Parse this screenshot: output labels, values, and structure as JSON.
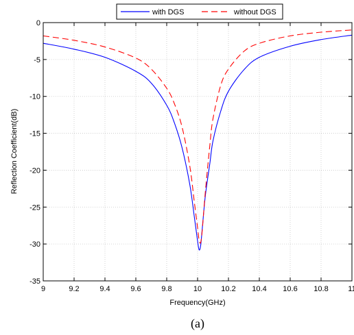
{
  "chart_data": {
    "type": "line",
    "title": "",
    "xlabel": "Frequency(GHz)",
    "ylabel": "Reflection Coefficient(dB)",
    "xlim": [
      9,
      11
    ],
    "ylim": [
      -35,
      0
    ],
    "xticks": [
      9,
      9.2,
      9.4,
      9.6,
      9.8,
      10,
      10.2,
      10.4,
      10.6,
      10.8,
      11
    ],
    "xtick_labels": [
      "9",
      "9.2",
      "9.4",
      "9.6",
      "9.8",
      "10",
      "10.2",
      "10.4",
      "10.6",
      "10.8",
      "11"
    ],
    "yticks": [
      0,
      -5,
      -10,
      -15,
      -20,
      -25,
      -30,
      -35
    ],
    "ytick_labels": [
      "0",
      "-5",
      "-10",
      "-15",
      "-20",
      "-25",
      "-30",
      "-35"
    ],
    "grid": true,
    "legend_position": "top",
    "series": [
      {
        "name": "with DGS",
        "color": "#0000ff",
        "dash": "solid",
        "x": [
          9.0,
          9.2,
          9.4,
          9.6,
          9.7,
          9.8,
          9.85,
          9.9,
          9.95,
          9.98,
          10.0,
          10.01,
          10.02,
          10.03,
          10.05,
          10.08,
          10.1,
          10.15,
          10.2,
          10.3,
          10.4,
          10.6,
          10.8,
          11.0
        ],
        "y": [
          -2.8,
          -3.6,
          -4.7,
          -6.6,
          -8.2,
          -11.2,
          -13.6,
          -17.0,
          -22.0,
          -26.5,
          -29.6,
          -30.8,
          -30.2,
          -28.0,
          -23.5,
          -19.0,
          -16.0,
          -12.0,
          -9.3,
          -6.4,
          -4.7,
          -3.2,
          -2.3,
          -1.7
        ]
      },
      {
        "name": "without DGS",
        "color": "#ff0000",
        "dash": "dashed",
        "x": [
          9.0,
          9.2,
          9.4,
          9.6,
          9.7,
          9.8,
          9.85,
          9.9,
          9.95,
          9.98,
          10.0,
          10.01,
          10.02,
          10.03,
          10.05,
          10.08,
          10.1,
          10.15,
          10.2,
          10.3,
          10.4,
          10.6,
          10.8,
          11.0
        ],
        "y": [
          -1.8,
          -2.4,
          -3.3,
          -4.8,
          -6.3,
          -8.9,
          -11.0,
          -14.2,
          -19.5,
          -24.5,
          -27.8,
          -29.5,
          -29.8,
          -28.2,
          -23.0,
          -16.5,
          -13.0,
          -8.5,
          -6.3,
          -3.9,
          -2.8,
          -1.8,
          -1.3,
          -1.0
        ]
      }
    ]
  },
  "caption": "(a)"
}
